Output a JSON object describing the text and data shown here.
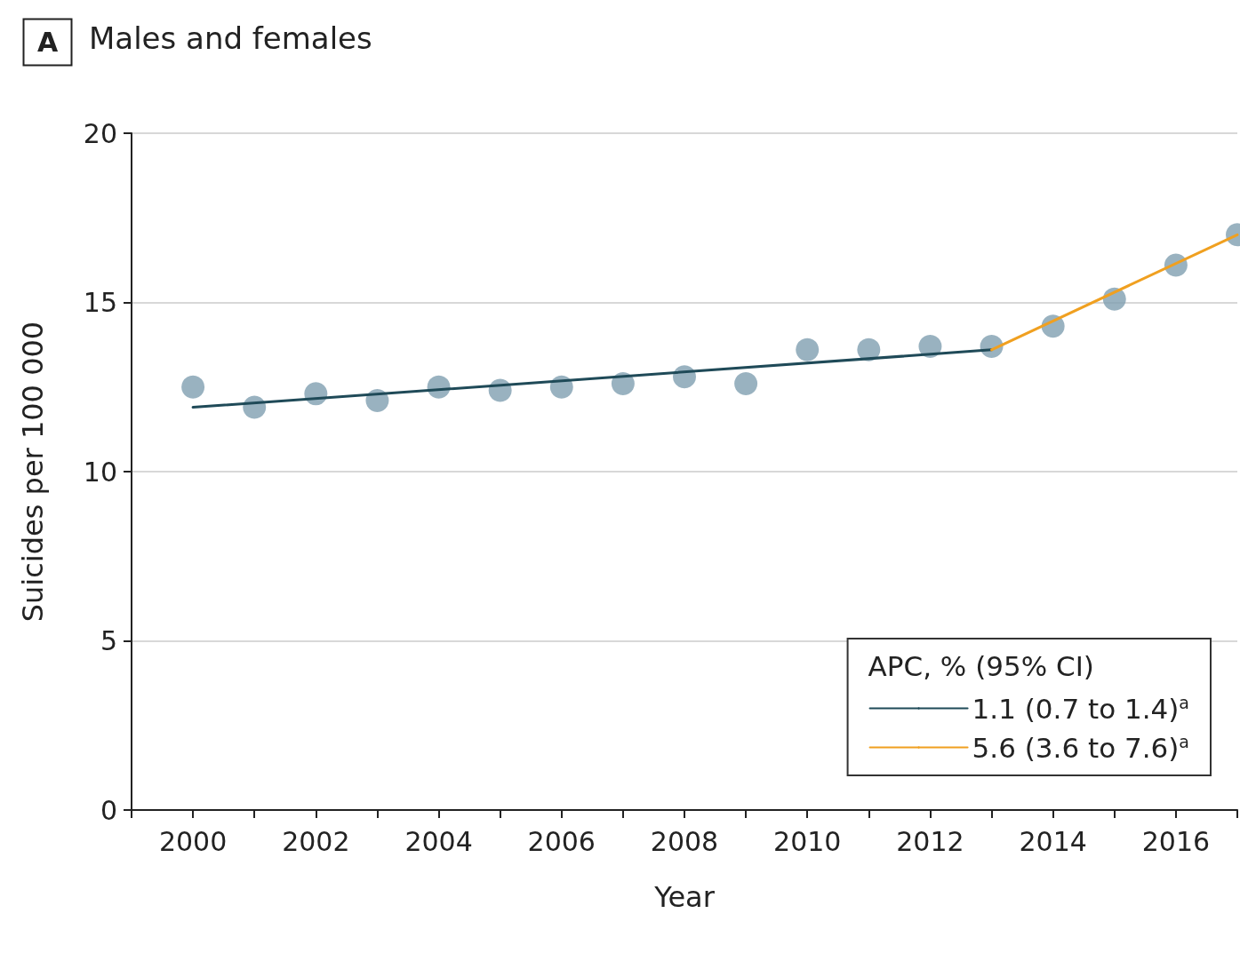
{
  "chart_data": {
    "type": "scatter",
    "title": "Males and females",
    "annotations": [
      "A"
    ],
    "xlabel": "Year",
    "ylabel": "Suicides per 100 000",
    "legend_title": "APC, % (95% CI)",
    "x": [
      2000,
      2001,
      2002,
      2003,
      2004,
      2005,
      2006,
      2007,
      2008,
      2009,
      2010,
      2011,
      2012,
      2013,
      2014,
      2015,
      2016,
      2017
    ],
    "series": [
      {
        "marker": "circle",
        "color": "#7f9fb0",
        "values": [
          12.5,
          11.9,
          12.3,
          12.1,
          12.5,
          12.4,
          12.5,
          12.6,
          12.8,
          12.6,
          13.6,
          13.6,
          13.7,
          13.7,
          14.3,
          15.1,
          16.1,
          17.0
        ]
      },
      {
        "type": "line",
        "marker": "none",
        "name": "1.1 (0.7 to 1.4)$^{a}$",
        "color": "#1f4a58",
        "x": [
          2000,
          2013
        ],
        "values": [
          11.9,
          13.6
        ]
      },
      {
        "type": "line",
        "marker": "none",
        "name": "5.6 (3.6 to 7.6)$^{a}$",
        "color": "#f0a020",
        "x": [
          2013,
          2017
        ],
        "values": [
          13.6,
          17.0
        ]
      }
    ],
    "xlim": [
      1999,
      2017
    ],
    "xticks": [
      {
        "value": 1999,
        "label": null
      },
      2000,
      {
        "value": 2001,
        "label": null
      },
      2002,
      {
        "value": 2003,
        "label": null
      },
      2004,
      {
        "value": 2005,
        "label": null
      },
      2006,
      {
        "value": 2007,
        "label": null
      },
      2008,
      {
        "value": 2009,
        "label": null
      },
      2010,
      {
        "value": 2011,
        "label": null
      },
      2012,
      {
        "value": 2013,
        "label": null
      },
      2014,
      {
        "value": 2015,
        "label": null
      },
      2016,
      {
        "value": 2017,
        "label": null
      }
    ],
    "ylim": [
      0,
      20
    ],
    "yticks": [
      0,
      5,
      10,
      15,
      20
    ],
    "grid": "y",
    "legend": "bottom right"
  }
}
